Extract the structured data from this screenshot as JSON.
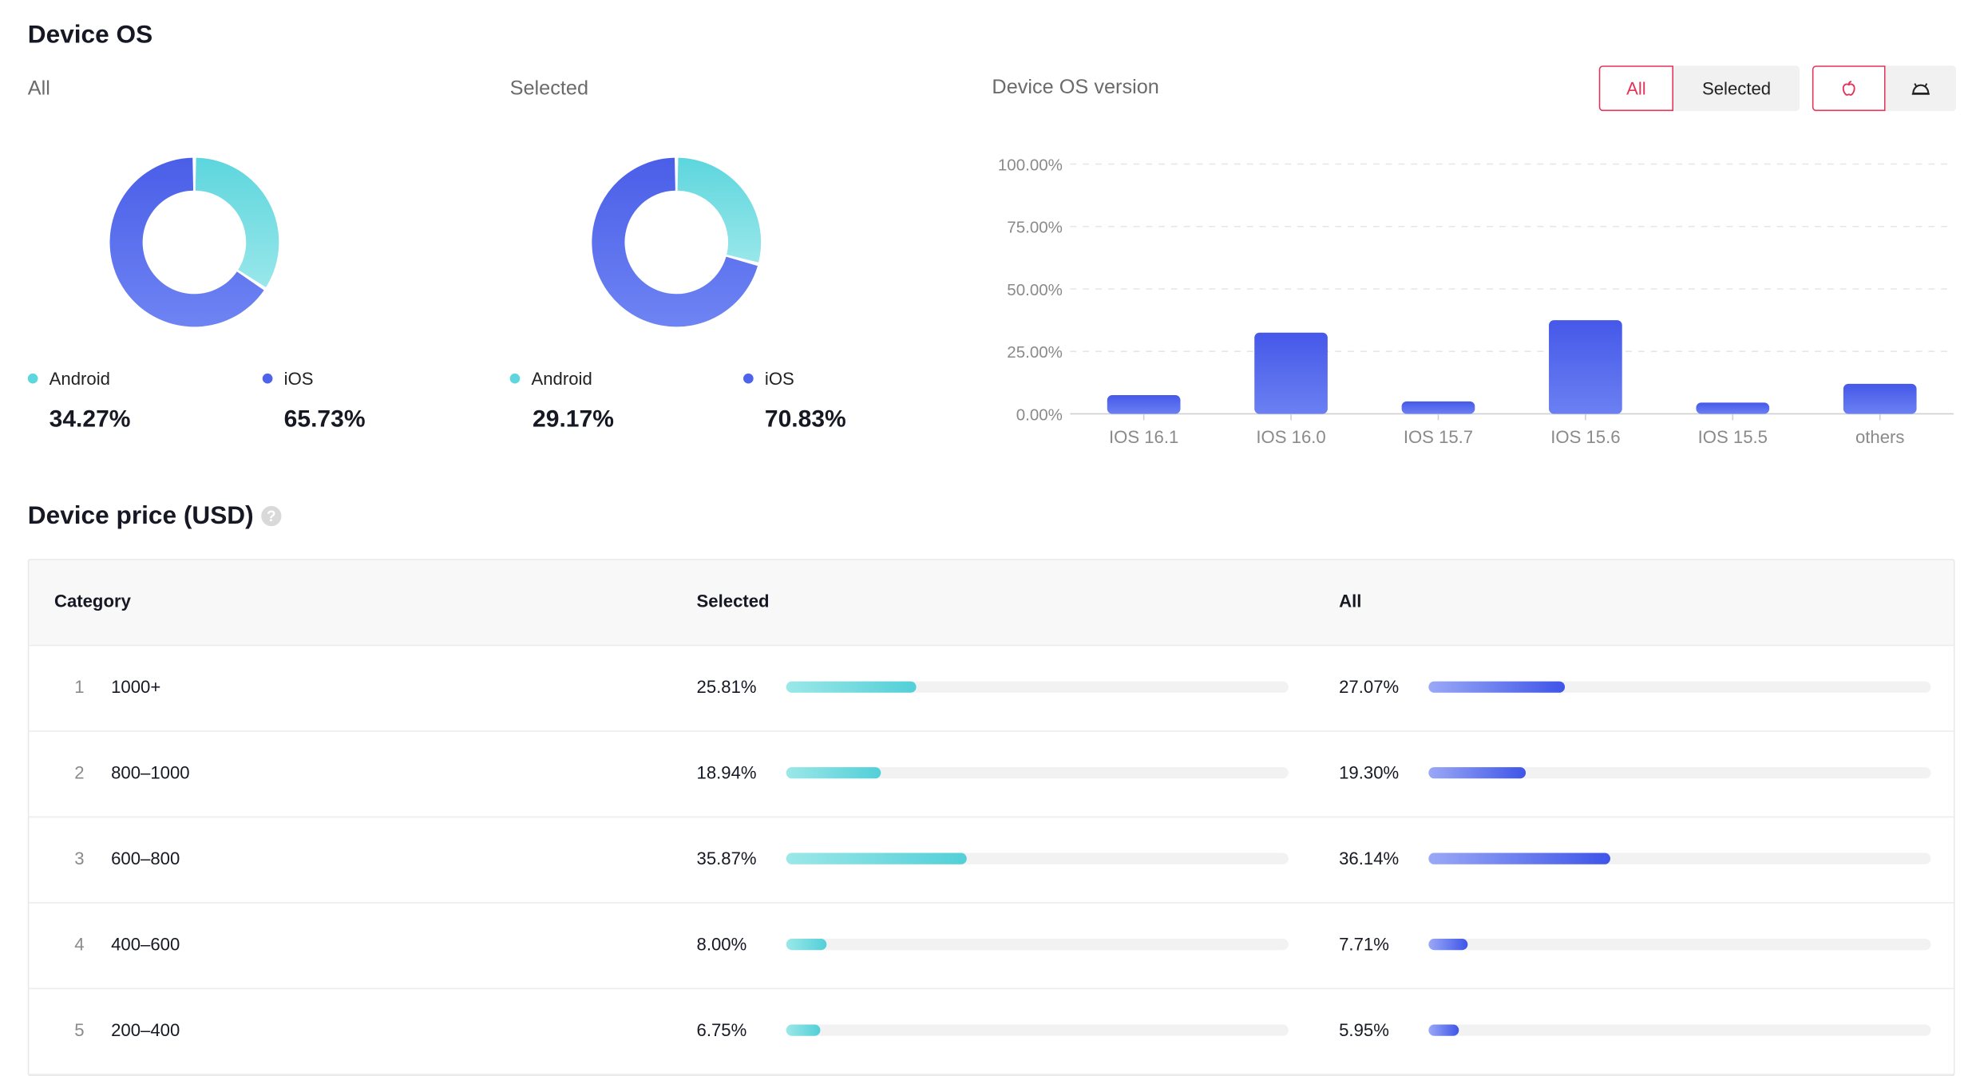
{
  "device_os": {
    "title": "Device OS",
    "all_panel": {
      "label": "All",
      "android_label": "Android",
      "android_pct": "34.27%",
      "ios_label": "iOS",
      "ios_pct": "65.73%",
      "android_value": 34.27,
      "ios_value": 65.73
    },
    "selected_panel": {
      "label": "Selected",
      "android_label": "Android",
      "android_pct": "29.17%",
      "ios_label": "iOS",
      "ios_pct": "70.83%",
      "android_value": 29.17,
      "ios_value": 70.83
    },
    "colors": {
      "android": "#5dd6dd",
      "ios": "#4c63ea",
      "accent": "#e3345a"
    }
  },
  "os_version": {
    "label": "Device OS version",
    "toggle_all": "All",
    "toggle_selected": "Selected",
    "apple_icon": "apple-icon",
    "android_icon": "android-icon"
  },
  "chart_data": {
    "type": "bar",
    "categories": [
      "IOS 16.1",
      "IOS 16.0",
      "IOS 15.7",
      "IOS 15.6",
      "IOS 15.5",
      "others"
    ],
    "values": [
      7.5,
      32.5,
      5,
      37.5,
      4.5,
      12
    ],
    "ytick_labels": [
      "0.00%",
      "25.00%",
      "50.00%",
      "75.00%",
      "100.00%"
    ],
    "ylim": [
      0,
      100
    ],
    "grid": true,
    "xlabel": "",
    "ylabel": ""
  },
  "device_price": {
    "title": "Device price (USD)",
    "help_icon": "?",
    "headers": {
      "category": "Category",
      "selected": "Selected",
      "all": "All"
    },
    "rows": [
      {
        "index": "1",
        "category": "1000+",
        "selected": "25.81%",
        "all": "27.07%",
        "selected_value": 25.81,
        "all_value": 27.07
      },
      {
        "index": "2",
        "category": "800–1000",
        "selected": "18.94%",
        "all": "19.30%",
        "selected_value": 18.94,
        "all_value": 19.3
      },
      {
        "index": "3",
        "category": "600–800",
        "selected": "35.87%",
        "all": "36.14%",
        "selected_value": 35.87,
        "all_value": 36.14
      },
      {
        "index": "4",
        "category": "400–600",
        "selected": "8.00%",
        "all": "7.71%",
        "selected_value": 8.0,
        "all_value": 7.71
      },
      {
        "index": "5",
        "category": "200–400",
        "selected": "6.75%",
        "all": "5.95%",
        "selected_value": 6.75,
        "all_value": 5.95
      }
    ]
  }
}
